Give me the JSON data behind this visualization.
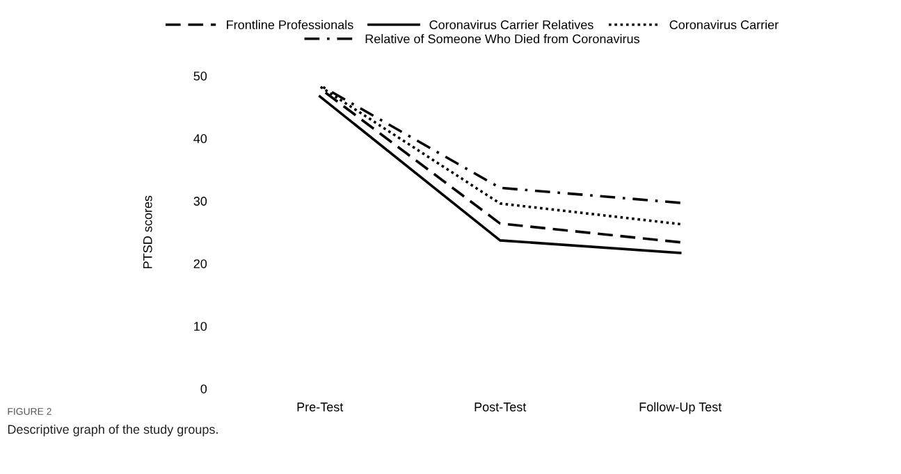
{
  "chart_data": {
    "type": "line",
    "ylabel": "PTSD scores",
    "categories": [
      "Pre-Test",
      "Post-Test",
      "Follow-Up Test"
    ],
    "series": [
      {
        "name": "Frontline Professionals",
        "color": "#000000",
        "line_style": "dashed",
        "values": [
          48.0,
          26.4,
          23.4
        ]
      },
      {
        "name": "Coronavirus Carrier Relatives",
        "color": "#000000",
        "line_style": "solid",
        "values": [
          46.7,
          23.7,
          21.7
        ]
      },
      {
        "name": "Coronavirus Carrier",
        "color": "#000000",
        "line_style": "dotted",
        "values": [
          48.3,
          29.6,
          26.3
        ]
      },
      {
        "name": "Relative of Someone Who Died from Coronavirus",
        "color": "#000000",
        "line_style": "dashdot",
        "values": [
          48.5,
          32.1,
          29.7
        ]
      }
    ],
    "ylim": [
      0,
      50
    ],
    "yticks": [
      0,
      10,
      20,
      30,
      40,
      50
    ],
    "grid": false,
    "legend": "top",
    "marker": "none",
    "annotations": [
      "FIGURE 2",
      "Descriptive graph of the study groups."
    ]
  }
}
